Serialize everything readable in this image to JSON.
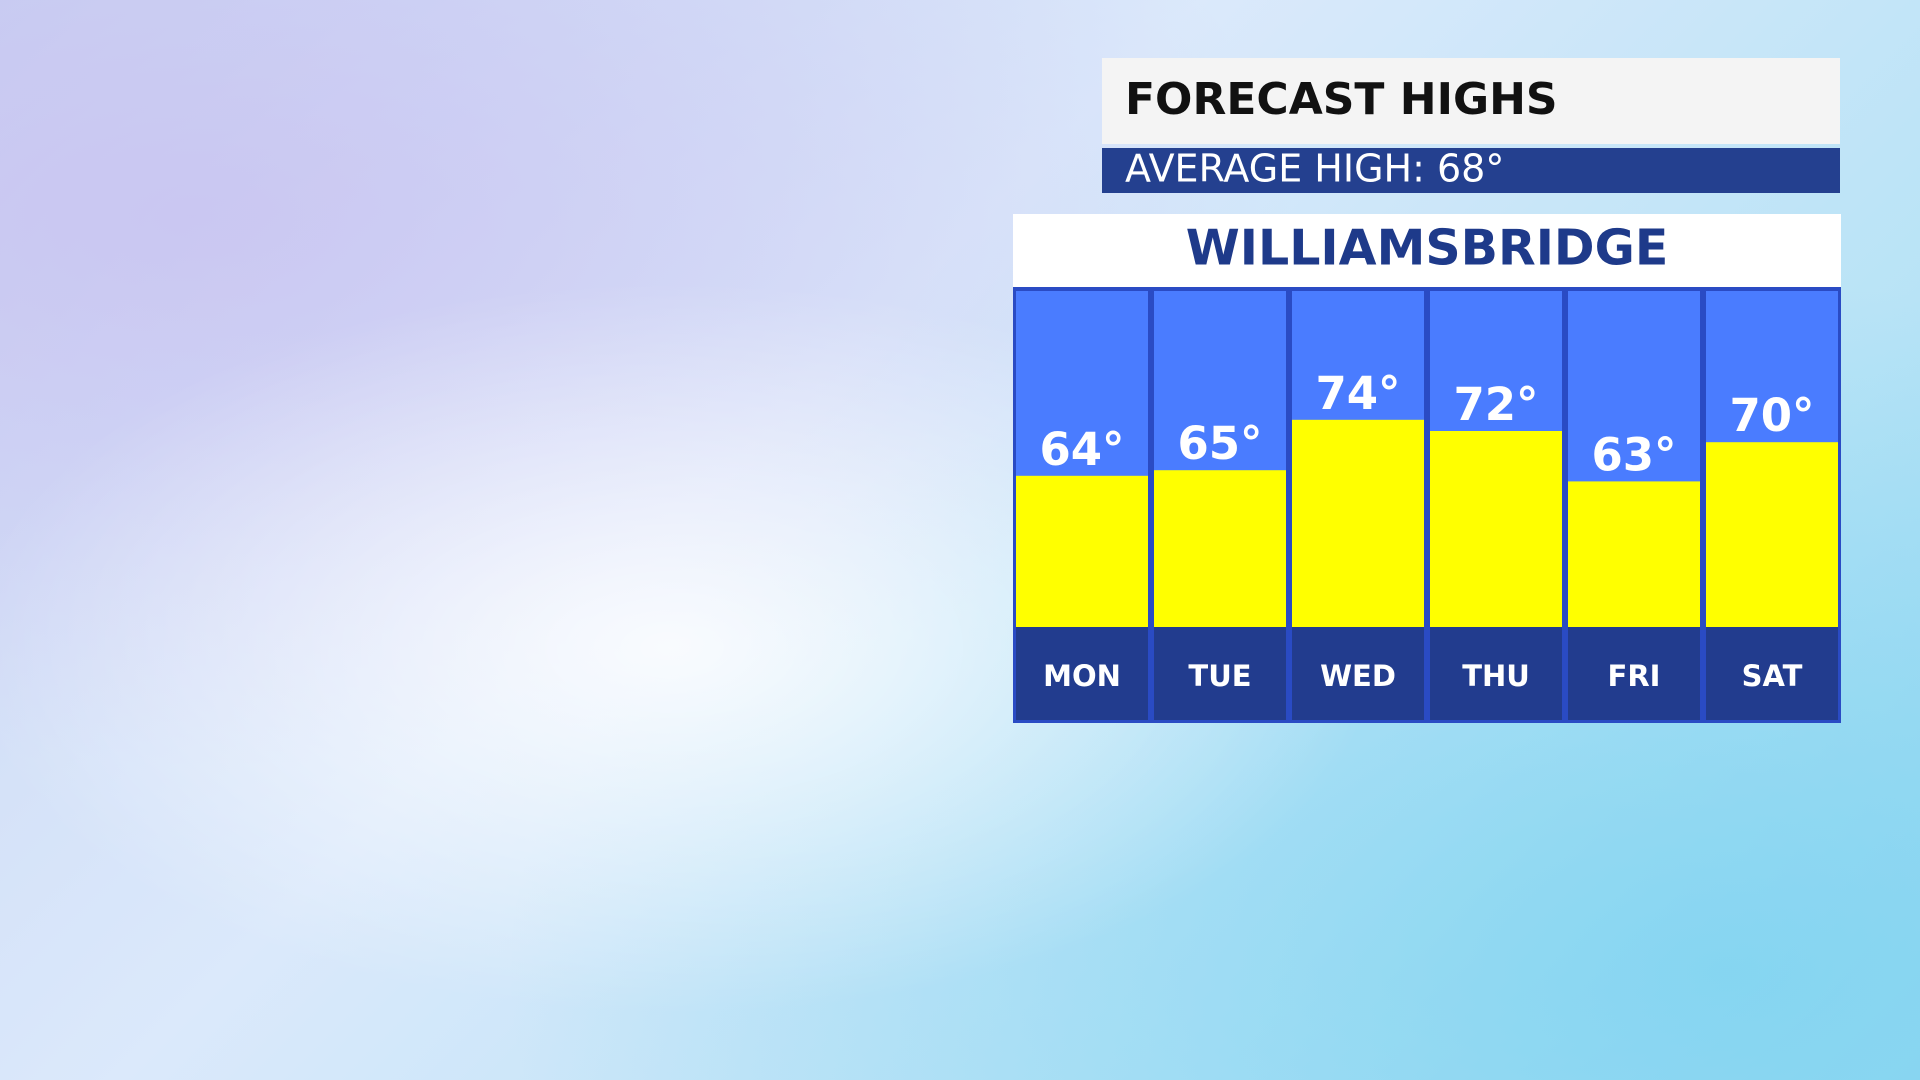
{
  "chart_data": {
    "type": "bar",
    "title": "FORECAST HIGHS",
    "subtitle": "AVERAGE HIGH: 68°",
    "location": "WILLIAMSBRIDGE",
    "categories": [
      "MON",
      "TUE",
      "WED",
      "THU",
      "FRI",
      "SAT"
    ],
    "values": [
      64,
      65,
      74,
      72,
      63,
      70
    ],
    "value_labels": [
      "64°",
      "65°",
      "74°",
      "72°",
      "63°",
      "70°"
    ],
    "color": "#ffff00",
    "ylim": [
      37,
      97
    ]
  }
}
